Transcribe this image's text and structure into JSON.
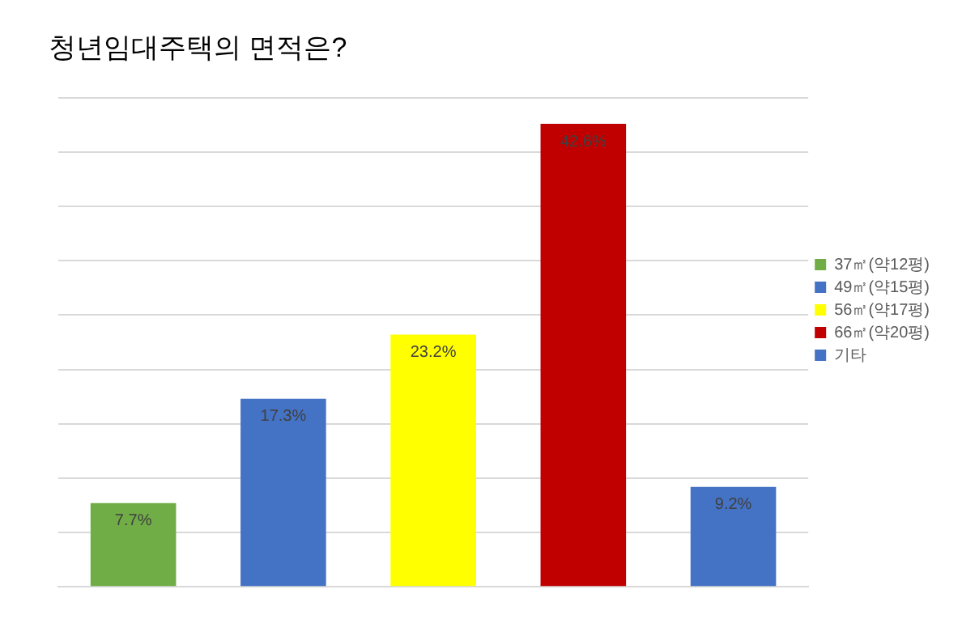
{
  "chart_data": {
    "type": "bar",
    "title": "청년임대주택의 면적은?",
    "categories": [
      null,
      null,
      null,
      null,
      null
    ],
    "stacked": true,
    "series": [
      {
        "name": "37㎡(약12평)",
        "color": "#70ad47",
        "values": [
          7.7,
          null,
          null,
          null,
          null
        ],
        "value_labels": [
          "7.7%",
          null,
          null,
          null,
          null
        ]
      },
      {
        "name": "49㎡(약15평)",
        "color": "#4472c4",
        "values": [
          null,
          17.3,
          null,
          null,
          null
        ],
        "value_labels": [
          null,
          "17.3%",
          null,
          null,
          null
        ]
      },
      {
        "name": "56㎡(약17평)",
        "color": "#ffff00",
        "values": [
          null,
          null,
          23.2,
          null,
          null
        ],
        "value_labels": [
          null,
          null,
          "23.2%",
          null,
          null
        ]
      },
      {
        "name": "66㎡(약20평)",
        "color": "#c00000",
        "values": [
          null,
          null,
          null,
          42.6,
          null
        ],
        "value_labels": [
          null,
          null,
          null,
          "42.6%",
          null
        ]
      },
      {
        "name": "기타",
        "color": "#4472c4",
        "values": [
          null,
          null,
          null,
          null,
          9.2
        ],
        "value_labels": [
          null,
          null,
          null,
          null,
          "9.2%"
        ]
      }
    ],
    "ylim": [
      0,
      45
    ],
    "yticks": [
      {
        "value": 0,
        "label": null
      },
      {
        "value": 5,
        "label": null
      },
      {
        "value": 10,
        "label": null
      },
      {
        "value": 15,
        "label": null
      },
      {
        "value": 20,
        "label": null
      },
      {
        "value": 25,
        "label": null
      },
      {
        "value": 30,
        "label": null
      },
      {
        "value": 35,
        "label": null
      },
      {
        "value": 40,
        "label": null
      },
      {
        "value": 45,
        "label": null
      }
    ],
    "grid": "y",
    "legend": "right"
  }
}
